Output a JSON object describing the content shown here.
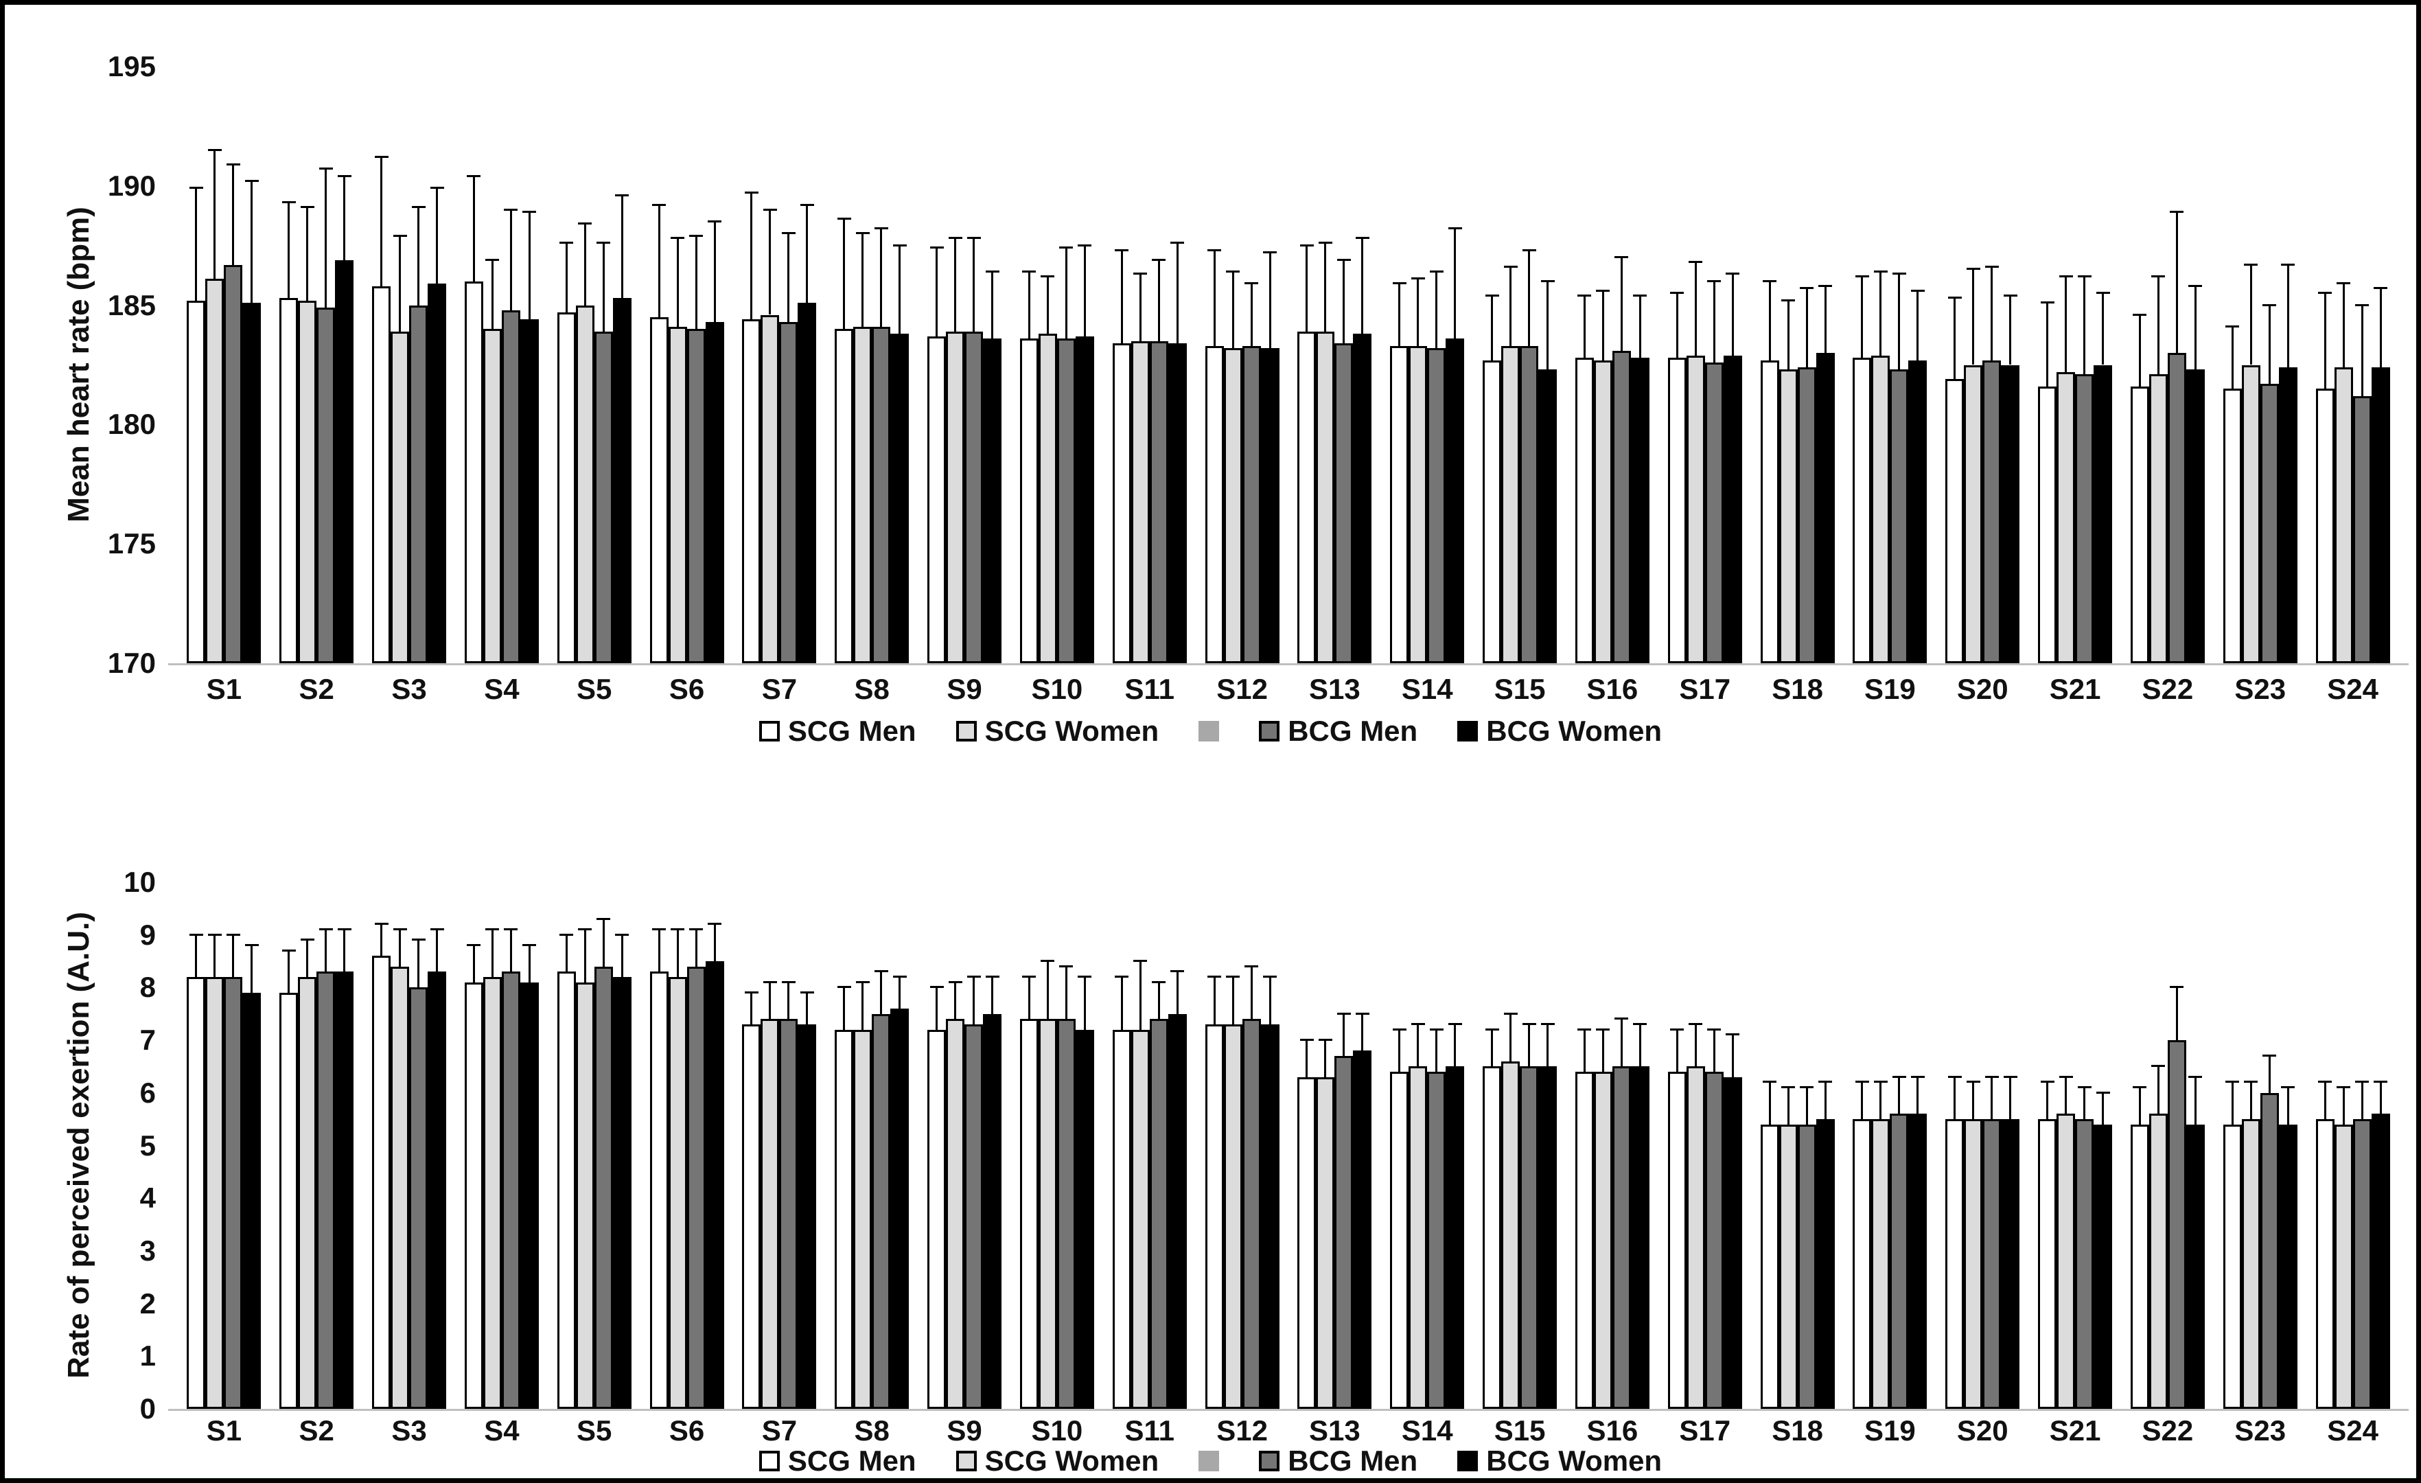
{
  "figure": {
    "background": "#ffffff",
    "border_color": "#000000",
    "bar_outline_color": "#000000",
    "axis_line_color": "#bfbfbf"
  },
  "series_colors": {
    "scg_men": "#ffffff",
    "scg_women": "#dcdcdc",
    "unlabeled_swatch": "#a8a8a8",
    "bcg_men": "#757575",
    "bcg_women": "#000000"
  },
  "chart_data": [
    {
      "type": "bar",
      "title": "",
      "ylabel": "Mean heart rate (bpm)",
      "xlabel": "",
      "ylim": [
        170,
        195
      ],
      "yticks": [
        "170",
        "175",
        "180",
        "185",
        "190",
        "195"
      ],
      "grid": false,
      "error_bars": "upper-only",
      "legend_position": "bottom-center",
      "categories": [
        "S1",
        "S2",
        "S3",
        "S4",
        "S5",
        "S6",
        "S7",
        "S8",
        "S9",
        "S10",
        "S11",
        "S12",
        "S13",
        "S14",
        "S15",
        "S16",
        "S17",
        "S18",
        "S19",
        "S20",
        "S21",
        "S22",
        "S23",
        "S24"
      ],
      "series": [
        {
          "name": "SCG Men",
          "fill": "#ffffff",
          "values": [
            185.2,
            185.3,
            185.8,
            186.0,
            184.7,
            184.5,
            184.4,
            184.0,
            183.7,
            183.6,
            183.4,
            183.3,
            183.9,
            183.3,
            182.7,
            182.8,
            182.8,
            182.7,
            182.8,
            181.9,
            181.6,
            181.6,
            181.5,
            181.5
          ],
          "errors": [
            4.7,
            4.0,
            5.4,
            4.4,
            2.9,
            4.7,
            5.3,
            4.6,
            3.7,
            2.8,
            3.9,
            4.0,
            3.6,
            2.6,
            2.7,
            2.6,
            2.7,
            3.3,
            3.4,
            3.4,
            3.5,
            3.0,
            2.6,
            4.0
          ]
        },
        {
          "name": "SCG Women",
          "fill": "#dcdcdc",
          "values": [
            186.1,
            185.2,
            183.9,
            184.0,
            185.0,
            184.1,
            184.6,
            184.1,
            183.9,
            183.8,
            183.5,
            183.2,
            183.9,
            183.3,
            183.3,
            182.7,
            182.9,
            182.3,
            182.9,
            182.5,
            182.2,
            182.1,
            182.5,
            182.4
          ],
          "errors": [
            5.4,
            3.9,
            4.0,
            2.9,
            3.4,
            3.7,
            4.4,
            3.9,
            3.9,
            2.4,
            2.8,
            3.2,
            3.7,
            2.8,
            3.3,
            2.9,
            3.9,
            2.9,
            3.5,
            4.0,
            4.0,
            4.1,
            4.2,
            3.5
          ]
        },
        {
          "name": "BCG Men",
          "fill": "#757575",
          "values": [
            186.7,
            184.9,
            185.0,
            184.8,
            183.9,
            184.0,
            184.3,
            184.1,
            183.9,
            183.6,
            183.5,
            183.3,
            183.4,
            183.2,
            183.3,
            183.1,
            182.6,
            182.4,
            182.3,
            182.7,
            182.1,
            183.0,
            181.7,
            181.2
          ],
          "errors": [
            4.2,
            5.8,
            4.1,
            4.2,
            3.7,
            3.9,
            3.7,
            4.1,
            3.9,
            3.8,
            3.4,
            2.6,
            3.5,
            3.2,
            4.0,
            3.9,
            3.4,
            3.3,
            4.0,
            3.9,
            4.1,
            5.9,
            3.3,
            3.8
          ]
        },
        {
          "name": "BCG Women",
          "fill": "#000000",
          "values": [
            185.1,
            186.9,
            185.9,
            184.4,
            185.3,
            184.3,
            185.1,
            183.8,
            183.6,
            183.7,
            183.4,
            183.2,
            183.8,
            183.6,
            182.3,
            182.8,
            182.9,
            183.0,
            182.7,
            182.5,
            182.5,
            182.3,
            182.4,
            182.4
          ],
          "errors": [
            5.1,
            3.5,
            4.0,
            4.5,
            4.3,
            4.2,
            4.1,
            3.7,
            2.8,
            3.8,
            4.2,
            4.0,
            4.0,
            4.6,
            3.7,
            2.6,
            3.4,
            2.8,
            2.9,
            2.9,
            3.0,
            3.5,
            4.3,
            3.3
          ]
        }
      ],
      "legend": [
        {
          "label": "SCG Men",
          "fill": "#ffffff",
          "outline": true
        },
        {
          "label": "SCG Women",
          "fill": "#dcdcdc",
          "outline": true
        },
        {
          "label": "",
          "fill": "#a8a8a8",
          "outline": false
        },
        {
          "label": "BCG Men",
          "fill": "#757575",
          "outline": true
        },
        {
          "label": "BCG Women",
          "fill": "#000000",
          "outline": true
        }
      ]
    },
    {
      "type": "bar",
      "title": "",
      "ylabel": "Rate of perceived exertion (A.U.)",
      "xlabel": "",
      "ylim": [
        0,
        10
      ],
      "yticks": [
        "0",
        "1",
        "2",
        "3",
        "4",
        "5",
        "6",
        "7",
        "8",
        "9",
        "10"
      ],
      "grid": false,
      "error_bars": "upper-only",
      "legend_position": "bottom-center",
      "categories": [
        "S1",
        "S2",
        "S3",
        "S4",
        "S5",
        "S6",
        "S7",
        "S8",
        "S9",
        "S10",
        "S11",
        "S12",
        "S13",
        "S14",
        "S15",
        "S16",
        "S17",
        "S18",
        "S19",
        "S20",
        "S21",
        "S22",
        "S23",
        "S24"
      ],
      "series": [
        {
          "name": "SCG Men",
          "fill": "#ffffff",
          "values": [
            8.2,
            7.9,
            8.6,
            8.1,
            8.3,
            8.3,
            7.3,
            7.2,
            7.2,
            7.4,
            7.2,
            7.3,
            6.3,
            6.4,
            6.5,
            6.4,
            6.4,
            5.4,
            5.5,
            5.5,
            5.5,
            5.4,
            5.4,
            5.5
          ],
          "errors": [
            0.8,
            0.8,
            0.6,
            0.7,
            0.7,
            0.8,
            0.6,
            0.8,
            0.8,
            0.8,
            1.0,
            0.9,
            0.7,
            0.8,
            0.7,
            0.8,
            0.8,
            0.8,
            0.7,
            0.8,
            0.7,
            0.7,
            0.8,
            0.7
          ]
        },
        {
          "name": "SCG Women",
          "fill": "#dcdcdc",
          "values": [
            8.2,
            8.2,
            8.4,
            8.2,
            8.1,
            8.2,
            7.4,
            7.2,
            7.4,
            7.4,
            7.2,
            7.3,
            6.3,
            6.5,
            6.6,
            6.4,
            6.5,
            5.4,
            5.5,
            5.5,
            5.6,
            5.6,
            5.5,
            5.4
          ],
          "errors": [
            0.8,
            0.7,
            0.7,
            0.9,
            1.0,
            0.9,
            0.7,
            0.9,
            0.7,
            1.1,
            1.3,
            0.9,
            0.7,
            0.8,
            0.9,
            0.8,
            0.8,
            0.7,
            0.7,
            0.7,
            0.7,
            0.9,
            0.7,
            0.7
          ]
        },
        {
          "name": "BCG Men",
          "fill": "#757575",
          "values": [
            8.2,
            8.3,
            8.0,
            8.3,
            8.4,
            8.4,
            7.4,
            7.5,
            7.3,
            7.4,
            7.4,
            7.4,
            6.7,
            6.4,
            6.5,
            6.5,
            6.4,
            5.4,
            5.6,
            5.5,
            5.5,
            7.0,
            6.0,
            5.5
          ],
          "errors": [
            0.8,
            0.8,
            0.9,
            0.8,
            0.9,
            0.7,
            0.7,
            0.8,
            0.9,
            1.0,
            0.7,
            1.0,
            0.8,
            0.8,
            0.8,
            0.9,
            0.8,
            0.7,
            0.7,
            0.8,
            0.6,
            1.0,
            0.7,
            0.7
          ]
        },
        {
          "name": "BCG Women",
          "fill": "#000000",
          "values": [
            7.9,
            8.3,
            8.3,
            8.1,
            8.2,
            8.5,
            7.3,
            7.6,
            7.5,
            7.2,
            7.5,
            7.3,
            6.8,
            6.5,
            6.5,
            6.5,
            6.3,
            5.5,
            5.6,
            5.5,
            5.4,
            5.4,
            5.4,
            5.6
          ],
          "errors": [
            0.9,
            0.8,
            0.8,
            0.7,
            0.8,
            0.7,
            0.6,
            0.6,
            0.7,
            1.0,
            0.8,
            0.9,
            0.7,
            0.8,
            0.8,
            0.8,
            0.8,
            0.7,
            0.7,
            0.8,
            0.6,
            0.9,
            0.7,
            0.6
          ]
        }
      ],
      "legend": [
        {
          "label": "SCG Men",
          "fill": "#ffffff",
          "outline": true
        },
        {
          "label": "SCG Women",
          "fill": "#dcdcdc",
          "outline": true
        },
        {
          "label": "",
          "fill": "#a8a8a8",
          "outline": false
        },
        {
          "label": "BCG Men",
          "fill": "#757575",
          "outline": true
        },
        {
          "label": "BCG Women",
          "fill": "#000000",
          "outline": true
        }
      ]
    }
  ]
}
